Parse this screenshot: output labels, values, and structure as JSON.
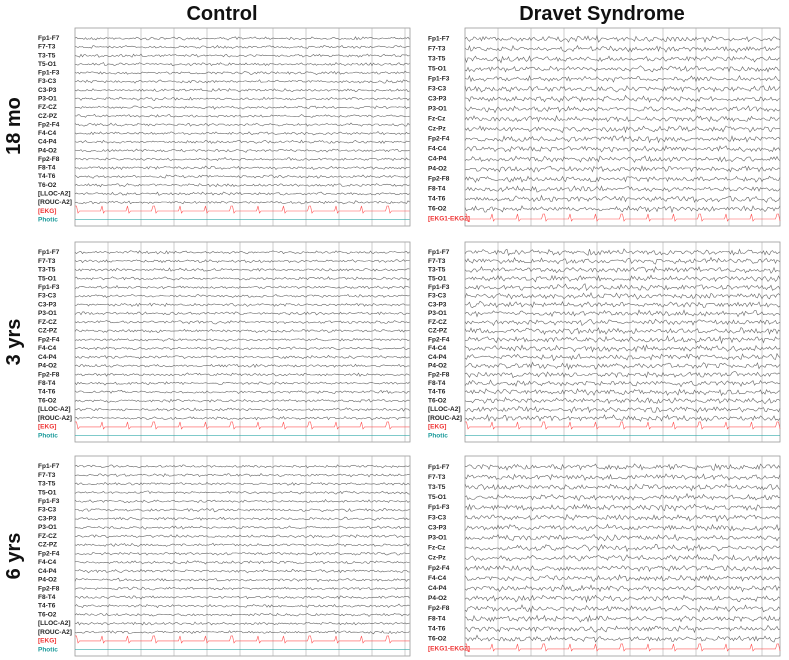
{
  "columns": [
    "Control",
    "Dravet Syndrome"
  ],
  "rows": [
    "18 mo",
    "3 yrs",
    "6 yrs"
  ],
  "panels": [
    {
      "channels": [
        "Fp1-F7",
        "F7-T3",
        "T3-T5",
        "T5-O1",
        "Fp1-F3",
        "F3-C3",
        "C3-P3",
        "P3-O1",
        "FZ-CZ",
        "CZ-PZ",
        "Fp2-F4",
        "F4-C4",
        "C4-P4",
        "P4-O2",
        "Fp2-F8",
        "F8-T4",
        "T4-T6",
        "T6-O2",
        "[LLOC-A2]",
        "[ROUC-A2]",
        "[EKG]",
        "Photic"
      ]
    },
    {
      "channels": [
        "Fp1-F7",
        "F7-T3",
        "T3-T5",
        "T5-O1",
        "Fp1-F3",
        "F3-C3",
        "C3-P3",
        "P3-O1",
        "Fz-Cz",
        "Cz-Pz",
        "Fp2-F4",
        "F4-C4",
        "C4-P4",
        "P4-O2",
        "Fp2-F8",
        "F8-T4",
        "T4-T6",
        "T6-O2",
        "[EKG1-EKG2]"
      ]
    },
    {
      "channels": [
        "Fp1-F7",
        "F7-T3",
        "T3-T5",
        "T5-O1",
        "Fp1-F3",
        "F3-C3",
        "C3-P3",
        "P3-O1",
        "FZ-CZ",
        "CZ-PZ",
        "Fp2-F4",
        "F4-C4",
        "C4-P4",
        "P4-O2",
        "Fp2-F8",
        "F8-T4",
        "T4-T6",
        "T6-O2",
        "[LLOC-A2]",
        "[ROUC-A2]",
        "[EKG]",
        "Photic"
      ]
    },
    {
      "channels": [
        "Fp1-F7",
        "F7-T3",
        "T3-T5",
        "T5-O1",
        "Fp1-F3",
        "F3-C3",
        "C3-P3",
        "P3-O1",
        "FZ-CZ",
        "CZ-PZ",
        "Fp2-F4",
        "F4-C4",
        "C4-P4",
        "P4-O2",
        "Fp2-F8",
        "F8-T4",
        "T4-T6",
        "T6-O2",
        "[LLOC-A2]",
        "[ROUC-A2]",
        "[EKG]",
        "Photic"
      ]
    },
    {
      "channels": [
        "Fp1-F7",
        "F7-T3",
        "T3-T5",
        "T5-O1",
        "Fp1-F3",
        "F3-C3",
        "C3-P3",
        "P3-O1",
        "FZ-CZ",
        "CZ-PZ",
        "Fp2-F4",
        "F4-C4",
        "C4-P4",
        "P4-O2",
        "Fp2-F8",
        "F8-T4",
        "T4-T6",
        "T6-O2",
        "[LLOC-A2]",
        "[ROUC-A2]",
        "[EKG]",
        "Photic"
      ]
    },
    {
      "channels": [
        "Fp1-F7",
        "F7-T3",
        "T3-T5",
        "T5-O1",
        "Fp1-F3",
        "F3-C3",
        "C3-P3",
        "P3-O1",
        "Fz-Cz",
        "Cz-Pz",
        "Fp2-F4",
        "F4-C4",
        "C4-P4",
        "P4-O2",
        "Fp2-F8",
        "F8-T4",
        "T4-T6",
        "T6-O2",
        "[EKG1-EKG2]"
      ]
    }
  ]
}
